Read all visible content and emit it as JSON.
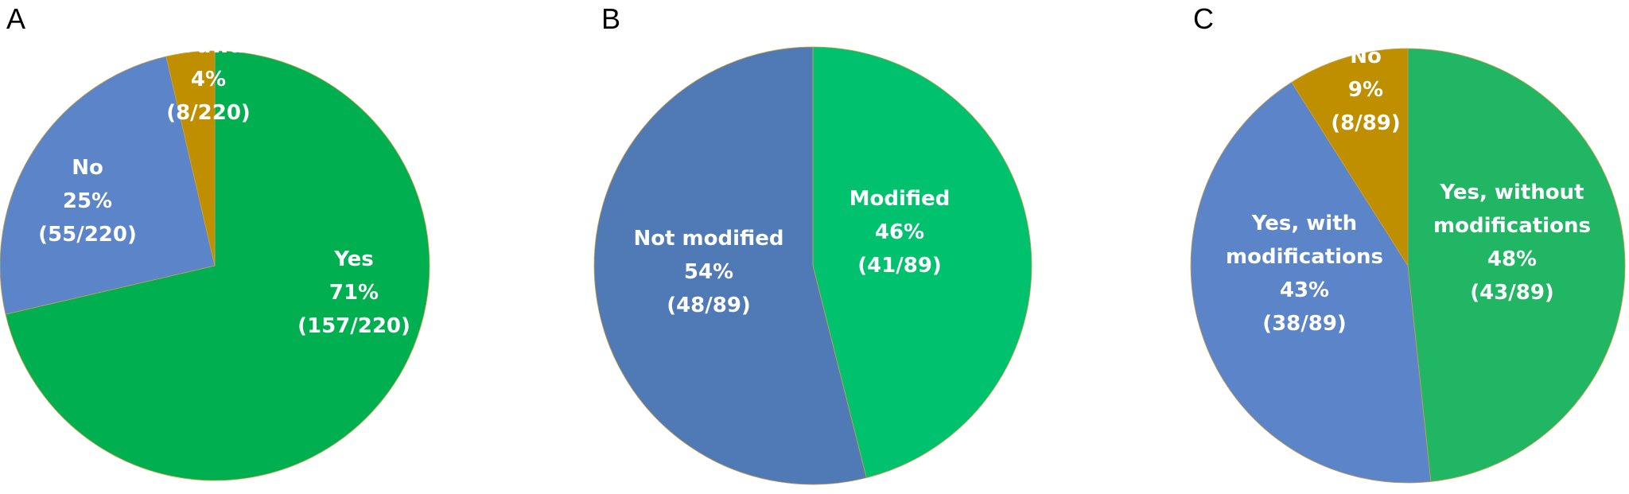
{
  "chart_data": [
    {
      "type": "pie",
      "panel": "A",
      "slices": [
        {
          "label": "Yes",
          "percent": "71%",
          "count": "(157/220)",
          "value": 157,
          "color": "#00b050"
        },
        {
          "label": "No",
          "percent": "25%",
          "count": "(55/220)",
          "value": 55,
          "color": "#5b84c9"
        },
        {
          "label": "Not aware",
          "percent": "4%",
          "count": "(8/220)",
          "value": 8,
          "color": "#bf8f00"
        }
      ]
    },
    {
      "type": "pie",
      "panel": "B",
      "slices": [
        {
          "label": "Modified",
          "percent": "46%",
          "count": "(41/89)",
          "value": 41,
          "color": "#00c16e"
        },
        {
          "label": "Not modified",
          "percent": "54%",
          "count": "(48/89)",
          "value": 48,
          "color": "#4f7ab5"
        }
      ]
    },
    {
      "type": "pie",
      "panel": "C",
      "slices": [
        {
          "label": "Yes, without modifications",
          "percent": "48%",
          "count": "(43/89)",
          "value": 43,
          "color": "#21b663"
        },
        {
          "label": "Yes, with modifications",
          "percent": "43%",
          "count": "(38/89)",
          "value": 38,
          "color": "#5b84c9"
        },
        {
          "label": "No",
          "percent": "9%",
          "count": "(8/89)",
          "value": 8,
          "color": "#bf8f00"
        }
      ]
    }
  ]
}
